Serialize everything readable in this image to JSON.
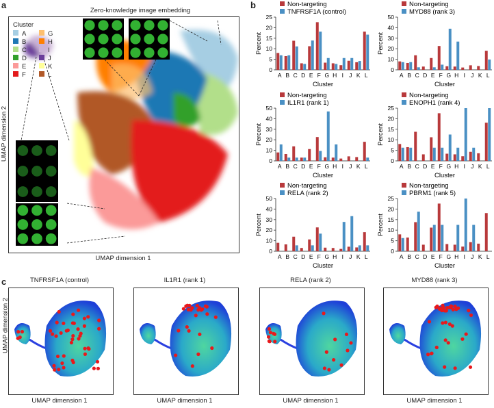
{
  "panel_labels": {
    "a": "a",
    "b": "b",
    "c": "c"
  },
  "panel_a": {
    "title": "Zero-knowledge image embedding",
    "xlabel": "UMAP dimension 1",
    "ylabel": "UMAP dimension 2",
    "legend_title": "Cluster",
    "clusters": [
      {
        "id": "A",
        "color": "#a6cee3"
      },
      {
        "id": "B",
        "color": "#1f78b4"
      },
      {
        "id": "C",
        "color": "#b2df8a"
      },
      {
        "id": "D",
        "color": "#33a02c"
      },
      {
        "id": "E",
        "color": "#fb9a99"
      },
      {
        "id": "F",
        "color": "#e31a1c"
      },
      {
        "id": "G",
        "color": "#fdbf6f"
      },
      {
        "id": "H",
        "color": "#ff7f00"
      },
      {
        "id": "I",
        "color": "#cab2d6"
      },
      {
        "id": "J",
        "color": "#6a3d9a"
      },
      {
        "id": "K",
        "color": "#ffff99"
      },
      {
        "id": "L",
        "color": "#b15928"
      }
    ]
  },
  "panel_c": {
    "xlabel": "UMAP dimension 1",
    "ylabel": "UMAP dimension 2",
    "titles": [
      "TNFRSF1A (control)",
      "IL1R1 (rank 1)",
      "RELA (rank 2)",
      "MYD88 (rank 3)"
    ]
  },
  "colors": {
    "non_targeting": "#b8393b",
    "perturbation": "#4a90c4"
  },
  "chart_data": [
    {
      "type": "bar",
      "xlabel": "Cluster",
      "ylabel": "Percent",
      "ylim": [
        0,
        25
      ],
      "yticks": [
        0,
        5,
        10,
        15,
        20,
        25
      ],
      "categories": [
        "A",
        "B",
        "C",
        "D",
        "E",
        "F",
        "G",
        "H",
        "I",
        "J",
        "K",
        "L"
      ],
      "series": [
        {
          "name": "Non-targeting",
          "values": [
            8,
            6.5,
            13.8,
            3.1,
            11.2,
            22.6,
            3.4,
            3.1,
            2.2,
            4.3,
            3.6,
            18.1
          ]
        },
        {
          "name": "TNFRSF1A (control)",
          "values": [
            6.9,
            6.9,
            11.1,
            2.8,
            13.9,
            18.1,
            5.6,
            2.8,
            5.6,
            5.6,
            4.2,
            16.7
          ]
        }
      ]
    },
    {
      "type": "bar",
      "xlabel": "Cluster",
      "ylabel": "Percent",
      "ylim": [
        0,
        50
      ],
      "yticks": [
        0,
        10,
        20,
        30,
        40,
        50
      ],
      "categories": [
        "A",
        "B",
        "C",
        "D",
        "E",
        "F",
        "G",
        "H",
        "I",
        "J",
        "K",
        "L"
      ],
      "series": [
        {
          "name": "Non-targeting",
          "values": [
            8,
            6.5,
            13.8,
            3.1,
            11.2,
            22.6,
            3.4,
            3.1,
            2.2,
            4.3,
            3.6,
            18.1
          ]
        },
        {
          "name": "MYD88 (rank 3)",
          "values": [
            7.3,
            7.3,
            2.4,
            0,
            2.4,
            4.9,
            39,
            26.8,
            0,
            0,
            0,
            9.8
          ]
        }
      ]
    },
    {
      "type": "bar",
      "xlabel": "Cluster",
      "ylabel": "Percent",
      "ylim": [
        0,
        50
      ],
      "yticks": [
        0,
        10,
        20,
        30,
        40,
        50
      ],
      "categories": [
        "A",
        "B",
        "C",
        "D",
        "E",
        "F",
        "G",
        "H",
        "I",
        "J",
        "K",
        "L"
      ],
      "series": [
        {
          "name": "Non-targeting",
          "values": [
            8,
            6.5,
            13.8,
            3.1,
            11.2,
            22.6,
            3.4,
            3.1,
            2.2,
            4.3,
            3.6,
            18.1
          ]
        },
        {
          "name": "IL1R1 (rank 1)",
          "values": [
            15.6,
            3.1,
            3.1,
            3.1,
            0,
            9.4,
            46.9,
            15.6,
            0,
            0,
            0,
            3.1
          ]
        }
      ]
    },
    {
      "type": "bar",
      "xlabel": "Cluster",
      "ylabel": "Percent",
      "ylim": [
        0,
        25
      ],
      "yticks": [
        0,
        5,
        10,
        15,
        20,
        25
      ],
      "categories": [
        "A",
        "B",
        "C",
        "D",
        "E",
        "F",
        "G",
        "H",
        "I",
        "J",
        "K",
        "L"
      ],
      "series": [
        {
          "name": "Non-targeting",
          "values": [
            8,
            6.5,
            13.8,
            3.1,
            11.2,
            22.6,
            3.4,
            3.1,
            2.2,
            4.3,
            3.6,
            18.1
          ]
        },
        {
          "name": "ENOPH1 (rank 4)",
          "values": [
            6.25,
            6.25,
            0,
            0,
            6.25,
            6.25,
            12.5,
            6.25,
            25,
            6.25,
            0,
            25
          ]
        }
      ]
    },
    {
      "type": "bar",
      "xlabel": "Cluster",
      "ylabel": "Percent",
      "ylim": [
        0,
        50
      ],
      "yticks": [
        0,
        10,
        20,
        30,
        40,
        50
      ],
      "categories": [
        "A",
        "B",
        "C",
        "D",
        "E",
        "F",
        "G",
        "H",
        "I",
        "J",
        "K",
        "L"
      ],
      "series": [
        {
          "name": "Non-targeting",
          "values": [
            8,
            6.5,
            13.8,
            3.1,
            11.2,
            22.6,
            3.4,
            3.1,
            2.2,
            4.3,
            3.6,
            18.1
          ]
        },
        {
          "name": "RELA (rank 2)",
          "values": [
            0,
            0,
            5.6,
            0,
            5.6,
            16.7,
            0,
            0,
            27.8,
            33.3,
            5.6,
            5.6
          ]
        }
      ]
    },
    {
      "type": "bar",
      "xlabel": "Cluster",
      "ylabel": "Percent",
      "ylim": [
        0,
        25
      ],
      "yticks": [
        0,
        5,
        10,
        15,
        20,
        25
      ],
      "categories": [
        "A",
        "B",
        "C",
        "D",
        "E",
        "F",
        "G",
        "H",
        "I",
        "J",
        "K",
        "L"
      ],
      "series": [
        {
          "name": "Non-targeting",
          "values": [
            8,
            6.5,
            13.8,
            3.1,
            11.2,
            22.6,
            3.4,
            3.1,
            2.2,
            4.3,
            3.6,
            18.1
          ]
        },
        {
          "name": "PBRM1 (rank 5)",
          "values": [
            6.25,
            0,
            18.75,
            0,
            12.5,
            12.5,
            0,
            12.5,
            25,
            12.5,
            0,
            0
          ]
        }
      ]
    }
  ]
}
